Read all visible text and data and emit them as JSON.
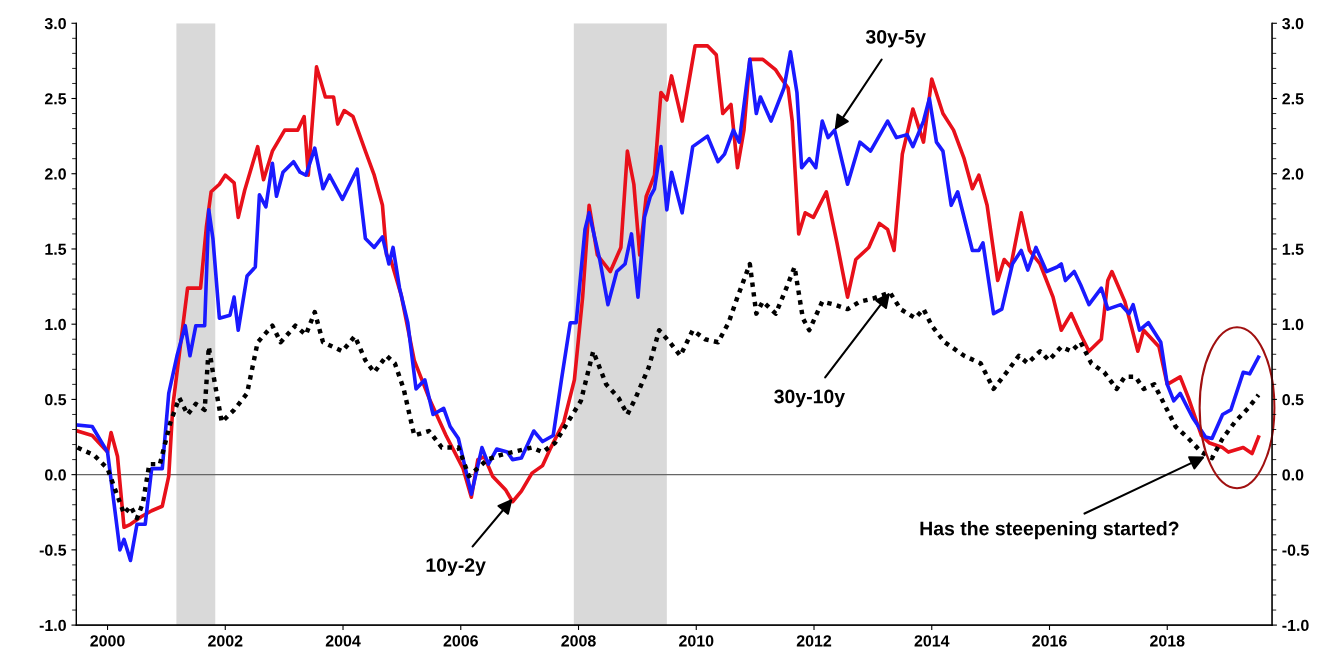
{
  "chart_data": {
    "type": "line",
    "xlim": [
      1999.47,
      2019.78
    ],
    "xticks": [
      2000,
      2002,
      2004,
      2006,
      2008,
      2010,
      2012,
      2014,
      2016,
      2018
    ],
    "ylim": [
      -1.0,
      3.0
    ],
    "yticks": [
      {
        "value": -1.0,
        "label": "-1.0"
      },
      {
        "value": -0.5,
        "label": "-0.5"
      },
      {
        "value": 0.0,
        "label": "0.0"
      },
      {
        "value": 0.5,
        "label": "0.5"
      },
      {
        "value": 1.0,
        "label": "1.0"
      },
      {
        "value": 1.5,
        "label": "1.5"
      },
      {
        "value": 2.0,
        "label": "2.0"
      },
      {
        "value": 2.5,
        "label": "2.5"
      },
      {
        "value": 3.0,
        "label": "3.0"
      }
    ],
    "y2lim": [
      -1.0,
      3.0
    ],
    "y2ticks": [
      {
        "value": -1.0,
        "label": "-1.0"
      },
      {
        "value": -0.5,
        "label": "-0.5"
      },
      {
        "value": 0.0,
        "label": "0.0"
      },
      {
        "value": 0.5,
        "label": "0.5"
      },
      {
        "value": 1.0,
        "label": "1.0"
      },
      {
        "value": 1.5,
        "label": "1.5"
      },
      {
        "value": 2.0,
        "label": "2.0"
      },
      {
        "value": 2.5,
        "label": "2.5"
      },
      {
        "value": 3.0,
        "label": "3.0"
      }
    ],
    "grid": false,
    "marker": "none",
    "series": [
      {
        "color": "#e8101a",
        "line_style": "solid",
        "x": [
          1999.49,
          1999.74,
          2000.0,
          2000.06,
          2000.17,
          2000.28,
          2000.39,
          2000.57,
          2000.75,
          2000.93,
          2001.04,
          2001.11,
          2001.36,
          2001.58,
          2001.68,
          2001.76,
          2001.9,
          2002.0,
          2002.15,
          2002.22,
          2002.33,
          2002.55,
          2002.65,
          2002.8,
          2003.01,
          2003.23,
          2003.34,
          2003.41,
          2003.55,
          2003.7,
          2003.84,
          2003.91,
          2004.02,
          2004.17,
          2004.38,
          2004.53,
          2004.67,
          2004.74,
          2004.81,
          2004.99,
          2005.21,
          2005.46,
          2005.75,
          2006.04,
          2006.18,
          2006.29,
          2006.4,
          2006.54,
          2006.76,
          2006.88,
          2007.03,
          2007.21,
          2007.39,
          2007.53,
          2007.75,
          2007.93,
          2008.07,
          2008.18,
          2008.32,
          2008.54,
          2008.72,
          2008.83,
          2008.94,
          2009.04,
          2009.15,
          2009.29,
          2009.4,
          2009.5,
          2009.58,
          2009.76,
          2009.98,
          2010.19,
          2010.34,
          2010.45,
          2010.59,
          2010.7,
          2010.81,
          2010.91,
          2011.13,
          2011.35,
          2011.45,
          2011.56,
          2011.63,
          2011.74,
          2011.85,
          2011.99,
          2012.21,
          2012.39,
          2012.57,
          2012.71,
          2012.93,
          2013.11,
          2013.25,
          2013.36,
          2013.5,
          2013.68,
          2013.86,
          2014.0,
          2014.19,
          2014.37,
          2014.55,
          2014.69,
          2014.8,
          2014.94,
          2015.12,
          2015.23,
          2015.34,
          2015.52,
          2015.66,
          2015.84,
          2016.06,
          2016.2,
          2016.37,
          2016.53,
          2016.67,
          2016.88,
          2016.99,
          2017.06,
          2017.28,
          2017.5,
          2017.6,
          2017.86,
          2018.0,
          2018.22,
          2018.36,
          2018.58,
          2018.72,
          2018.94,
          2019.04,
          2019.29,
          2019.44,
          2019.55
        ],
        "values": [
          0.29,
          0.26,
          0.15,
          0.28,
          0.12,
          -0.35,
          -0.33,
          -0.28,
          -0.24,
          -0.21,
          -0.01,
          0.46,
          1.24,
          1.24,
          1.65,
          1.88,
          1.93,
          1.99,
          1.94,
          1.71,
          1.89,
          2.18,
          1.96,
          2.15,
          2.29,
          2.29,
          2.38,
          1.99,
          2.71,
          2.51,
          2.51,
          2.33,
          2.42,
          2.38,
          2.15,
          1.99,
          1.79,
          1.46,
          1.43,
          1.19,
          0.76,
          0.51,
          0.26,
          0.04,
          -0.15,
          0.1,
          0.12,
          -0.01,
          -0.1,
          -0.18,
          -0.11,
          0.01,
          0.06,
          0.18,
          0.35,
          0.63,
          1.18,
          1.79,
          1.46,
          1.35,
          1.51,
          2.15,
          1.93,
          1.46,
          1.85,
          1.99,
          2.54,
          2.49,
          2.65,
          2.35,
          2.85,
          2.85,
          2.79,
          2.4,
          2.46,
          2.04,
          2.29,
          2.76,
          2.76,
          2.69,
          2.63,
          2.57,
          2.35,
          1.6,
          1.74,
          1.71,
          1.88,
          1.54,
          1.18,
          1.43,
          1.51,
          1.67,
          1.63,
          1.49,
          2.13,
          2.43,
          2.21,
          2.63,
          2.4,
          2.29,
          2.1,
          1.9,
          1.99,
          1.79,
          1.29,
          1.43,
          1.38,
          1.74,
          1.49,
          1.4,
          1.18,
          0.96,
          1.07,
          0.93,
          0.82,
          0.9,
          1.29,
          1.35,
          1.15,
          0.82,
          0.96,
          0.85,
          0.6,
          0.65,
          0.51,
          0.26,
          0.21,
          0.18,
          0.15,
          0.18,
          0.14,
          0.25
        ]
      },
      {
        "color": "#1a1aff",
        "line_style": "solid",
        "x": [
          1999.49,
          1999.74,
          2000.0,
          2000.21,
          2000.28,
          2000.39,
          2000.5,
          2000.64,
          2000.75,
          2000.93,
          2001.04,
          2001.18,
          2001.32,
          2001.4,
          2001.5,
          2001.65,
          2001.72,
          2001.79,
          2001.9,
          2002.08,
          2002.15,
          2002.22,
          2002.37,
          2002.51,
          2002.58,
          2002.69,
          2002.8,
          2002.87,
          2002.98,
          2003.16,
          2003.27,
          2003.37,
          2003.52,
          2003.66,
          2003.77,
          2003.99,
          2004.24,
          2004.38,
          2004.53,
          2004.67,
          2004.78,
          2004.85,
          2004.96,
          2005.1,
          2005.24,
          2005.39,
          2005.53,
          2005.71,
          2005.82,
          2005.96,
          2006.18,
          2006.36,
          2006.47,
          2006.61,
          2006.79,
          2006.88,
          2007.03,
          2007.24,
          2007.39,
          2007.57,
          2007.71,
          2007.86,
          2007.96,
          2008.11,
          2008.18,
          2008.36,
          2008.5,
          2008.65,
          2008.79,
          2008.9,
          2009.01,
          2009.12,
          2009.22,
          2009.29,
          2009.4,
          2009.5,
          2009.58,
          2009.76,
          2009.94,
          2010.19,
          2010.37,
          2010.48,
          2010.63,
          2010.73,
          2010.91,
          2011.02,
          2011.09,
          2011.27,
          2011.49,
          2011.6,
          2011.71,
          2011.79,
          2011.92,
          2012.03,
          2012.14,
          2012.24,
          2012.35,
          2012.57,
          2012.78,
          2012.96,
          2013.25,
          2013.4,
          2013.58,
          2013.68,
          2013.86,
          2013.96,
          2014.08,
          2014.19,
          2014.33,
          2014.44,
          2014.69,
          2014.8,
          2014.87,
          2015.05,
          2015.19,
          2015.37,
          2015.52,
          2015.63,
          2015.77,
          2015.95,
          2016.13,
          2016.2,
          2016.27,
          2016.42,
          2016.53,
          2016.67,
          2016.88,
          2016.99,
          2017.21,
          2017.35,
          2017.42,
          2017.53,
          2017.68,
          2017.89,
          2018.0,
          2018.11,
          2018.22,
          2018.43,
          2018.65,
          2018.76,
          2018.94,
          2019.08,
          2019.29,
          2019.4,
          2019.55
        ],
        "values": [
          0.33,
          0.32,
          0.15,
          -0.5,
          -0.43,
          -0.57,
          -0.33,
          -0.33,
          0.04,
          0.04,
          0.54,
          0.79,
          0.99,
          0.79,
          0.99,
          0.99,
          1.76,
          1.57,
          1.04,
          1.06,
          1.18,
          0.96,
          1.32,
          1.38,
          1.86,
          1.78,
          2.07,
          1.85,
          2.01,
          2.08,
          2.01,
          1.99,
          2.17,
          1.9,
          1.99,
          1.83,
          2.03,
          1.57,
          1.51,
          1.58,
          1.4,
          1.51,
          1.24,
          1.01,
          0.57,
          0.63,
          0.4,
          0.44,
          0.32,
          0.24,
          -0.13,
          0.18,
          0.07,
          0.17,
          0.15,
          0.1,
          0.11,
          0.29,
          0.22,
          0.26,
          0.63,
          1.01,
          1.01,
          1.63,
          1.74,
          1.43,
          1.13,
          1.35,
          1.4,
          1.6,
          1.18,
          1.71,
          1.85,
          1.9,
          2.18,
          1.76,
          2.01,
          1.74,
          2.18,
          2.25,
          2.08,
          2.13,
          2.29,
          2.21,
          2.76,
          2.4,
          2.51,
          2.35,
          2.57,
          2.81,
          2.54,
          2.04,
          2.1,
          2.04,
          2.35,
          2.24,
          2.29,
          1.93,
          2.21,
          2.15,
          2.35,
          2.24,
          2.26,
          2.18,
          2.35,
          2.5,
          2.21,
          2.15,
          1.79,
          1.88,
          1.49,
          1.49,
          1.54,
          1.07,
          1.1,
          1.4,
          1.49,
          1.36,
          1.51,
          1.35,
          1.38,
          1.4,
          1.29,
          1.35,
          1.26,
          1.13,
          1.24,
          1.1,
          1.13,
          1.07,
          1.13,
          0.96,
          1.01,
          0.88,
          0.6,
          0.49,
          0.54,
          0.38,
          0.25,
          0.24,
          0.4,
          0.43,
          0.68,
          0.67,
          0.78
        ]
      },
      {
        "color": "#000000",
        "line_style": "dotted",
        "x": [
          1999.49,
          1999.77,
          2000.0,
          2000.28,
          2000.39,
          2000.5,
          2000.6,
          2000.71,
          2000.89,
          2001.07,
          2001.22,
          2001.36,
          2001.5,
          2001.65,
          2001.72,
          2001.79,
          2001.94,
          2002.15,
          2002.37,
          2002.55,
          2002.8,
          2002.94,
          2003.19,
          2003.37,
          2003.52,
          2003.66,
          2003.99,
          2004.2,
          2004.38,
          2004.53,
          2004.74,
          2004.88,
          2005.03,
          2005.21,
          2005.46,
          2005.68,
          2005.96,
          2006.14,
          2006.45,
          2006.67,
          2007.21,
          2007.39,
          2007.6,
          2007.82,
          2008.04,
          2008.25,
          2008.47,
          2008.68,
          2008.83,
          2008.97,
          2009.19,
          2009.37,
          2009.55,
          2009.73,
          2009.94,
          2010.15,
          2010.37,
          2010.55,
          2010.7,
          2010.91,
          2011.02,
          2011.13,
          2011.35,
          2011.53,
          2011.67,
          2011.81,
          2011.92,
          2012.14,
          2012.35,
          2012.57,
          2012.78,
          2013.0,
          2013.29,
          2013.47,
          2013.72,
          2013.86,
          2014.0,
          2014.22,
          2014.55,
          2014.83,
          2015.05,
          2015.27,
          2015.48,
          2015.63,
          2015.84,
          2015.99,
          2016.2,
          2016.37,
          2016.53,
          2016.71,
          2016.93,
          2017.14,
          2017.28,
          2017.46,
          2017.6,
          2017.78,
          2017.96,
          2018.14,
          2018.36,
          2018.58,
          2018.76,
          2018.94,
          2019.15,
          2019.37,
          2019.55
        ],
        "values": [
          0.18,
          0.13,
          0.04,
          -0.26,
          -0.21,
          -0.29,
          -0.19,
          0.07,
          0.07,
          0.35,
          0.51,
          0.4,
          0.47,
          0.43,
          0.85,
          0.68,
          0.35,
          0.43,
          0.54,
          0.88,
          0.99,
          0.88,
          0.99,
          0.93,
          1.08,
          0.88,
          0.82,
          0.92,
          0.76,
          0.68,
          0.79,
          0.74,
          0.57,
          0.26,
          0.29,
          0.18,
          0.18,
          -0.01,
          0.1,
          0.13,
          0.18,
          0.15,
          0.21,
          0.35,
          0.49,
          0.82,
          0.6,
          0.51,
          0.4,
          0.51,
          0.71,
          0.96,
          0.88,
          0.79,
          0.96,
          0.9,
          0.88,
          1.01,
          1.18,
          1.4,
          1.07,
          1.15,
          1.07,
          1.24,
          1.38,
          1.04,
          0.96,
          1.15,
          1.13,
          1.1,
          1.15,
          1.17,
          1.21,
          1.1,
          1.04,
          1.1,
          0.99,
          0.88,
          0.79,
          0.74,
          0.57,
          0.68,
          0.79,
          0.74,
          0.82,
          0.76,
          0.85,
          0.82,
          0.88,
          0.74,
          0.68,
          0.57,
          0.65,
          0.65,
          0.57,
          0.6,
          0.46,
          0.32,
          0.24,
          0.15,
          0.11,
          0.24,
          0.35,
          0.44,
          0.53
        ]
      }
    ],
    "ref_lines": [
      {
        "axis": "y",
        "value": 0.0,
        "color": "#666666",
        "line_style": "solid"
      }
    ],
    "bands": [
      {
        "axis": "x",
        "from": 2001.17,
        "to": 2001.83,
        "color": "#d9d9d9"
      },
      {
        "axis": "x",
        "from": 2007.92,
        "to": 2009.5,
        "color": "#d9d9d9"
      }
    ],
    "annotations": [
      {
        "text": "30y-5y",
        "x": 2012.35,
        "y": 2.29
      },
      {
        "text": "10y-2y",
        "x": 2006.88,
        "y": -0.16
      },
      {
        "text": "30y-10y",
        "x": 2013.29,
        "y": 1.21
      },
      {
        "text": "Has the steepening started?",
        "x": 2018.64,
        "y": 0.12
      }
    ]
  }
}
